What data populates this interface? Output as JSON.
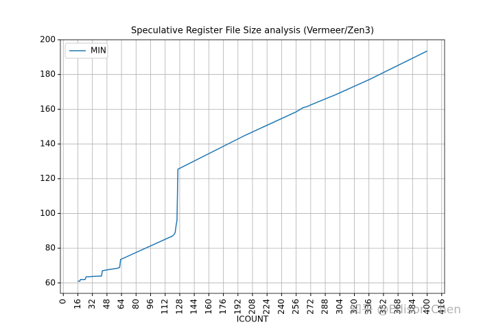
{
  "chart_data": {
    "type": "line",
    "title": "Speculative Register File Size analysis (Vermeer/Zen3)",
    "xlabel": "ICOUNT",
    "x": [
      16,
      18,
      19,
      24,
      25,
      42,
      43,
      48,
      60,
      62,
      63,
      120,
      122,
      123,
      124,
      125,
      126,
      128,
      200,
      256,
      264,
      268,
      272,
      300,
      336,
      400
    ],
    "series": [
      {
        "name": "MIN",
        "color": "#1f77b4",
        "values": [
          61,
          61,
          62,
          62,
          63.5,
          64,
          67,
          67.5,
          68.5,
          69,
          73.5,
          87,
          88,
          89,
          93,
          96,
          125.5,
          126,
          145,
          158.5,
          161,
          161.5,
          162.5,
          168.5,
          177,
          193.5
        ]
      }
    ],
    "xlim": [
      -3.2,
      419.2
    ],
    "ylim": [
      54,
      200
    ],
    "xticks": [
      0,
      16,
      32,
      48,
      64,
      80,
      96,
      112,
      128,
      144,
      160,
      176,
      192,
      208,
      224,
      240,
      256,
      272,
      288,
      304,
      320,
      336,
      352,
      368,
      384,
      400,
      416
    ],
    "yticks": [
      60,
      80,
      100,
      120,
      140,
      160,
      180,
      200
    ],
    "grid": true,
    "legend": "upper-left",
    "watermark": "知乎 @Edison Chen"
  }
}
